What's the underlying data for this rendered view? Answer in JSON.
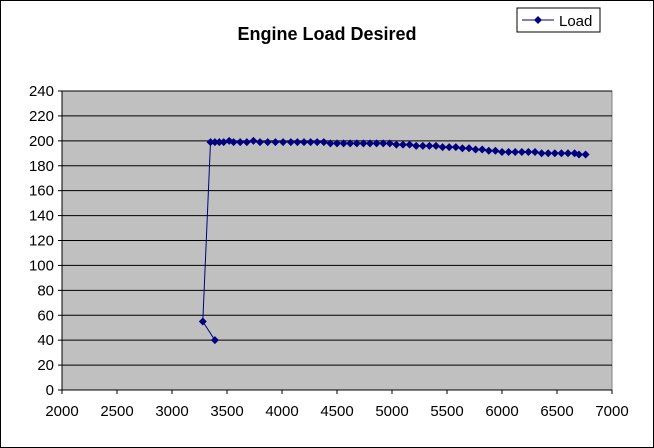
{
  "chart_data": {
    "type": "scatter",
    "title": "Engine Load Desired",
    "xlabel": "",
    "ylabel": "",
    "xlim": [
      2000,
      7000
    ],
    "ylim": [
      0,
      240
    ],
    "x_ticks": [
      2000,
      2500,
      3000,
      3500,
      4000,
      4500,
      5000,
      5500,
      6000,
      6500,
      7000
    ],
    "y_ticks": [
      0,
      20,
      40,
      60,
      80,
      100,
      120,
      140,
      160,
      180,
      200,
      220,
      240
    ],
    "grid": "horizontal",
    "legend_position": "top-right",
    "colors": {
      "series": "#000080",
      "plot_bg": "#c0c0c0",
      "gridline": "#000000"
    },
    "series": [
      {
        "name": "Load",
        "marker": "diamond",
        "x": [
          3390,
          3280,
          3350,
          3390,
          3430,
          3470,
          3520,
          3560,
          3620,
          3680,
          3740,
          3800,
          3870,
          3940,
          4010,
          4080,
          4140,
          4200,
          4260,
          4320,
          4380,
          4440,
          4500,
          4560,
          4620,
          4680,
          4740,
          4800,
          4860,
          4920,
          4980,
          5040,
          5100,
          5160,
          5220,
          5280,
          5340,
          5400,
          5460,
          5520,
          5580,
          5640,
          5700,
          5760,
          5820,
          5880,
          5940,
          6000,
          6060,
          6120,
          6180,
          6240,
          6300,
          6360,
          6420,
          6480,
          6540,
          6600,
          6660,
          6700,
          6760
        ],
        "y": [
          40,
          55,
          199,
          199,
          199,
          199,
          200,
          199,
          199,
          199,
          200,
          199,
          199,
          199,
          199,
          199,
          199,
          199,
          199,
          199,
          199,
          198,
          198,
          198,
          198,
          198,
          198,
          198,
          198,
          198,
          198,
          197,
          197,
          197,
          196,
          196,
          196,
          196,
          195,
          195,
          195,
          194,
          194,
          193,
          193,
          192,
          192,
          191,
          191,
          191,
          191,
          191,
          191,
          190,
          190,
          190,
          190,
          190,
          190,
          189,
          189
        ]
      }
    ]
  }
}
